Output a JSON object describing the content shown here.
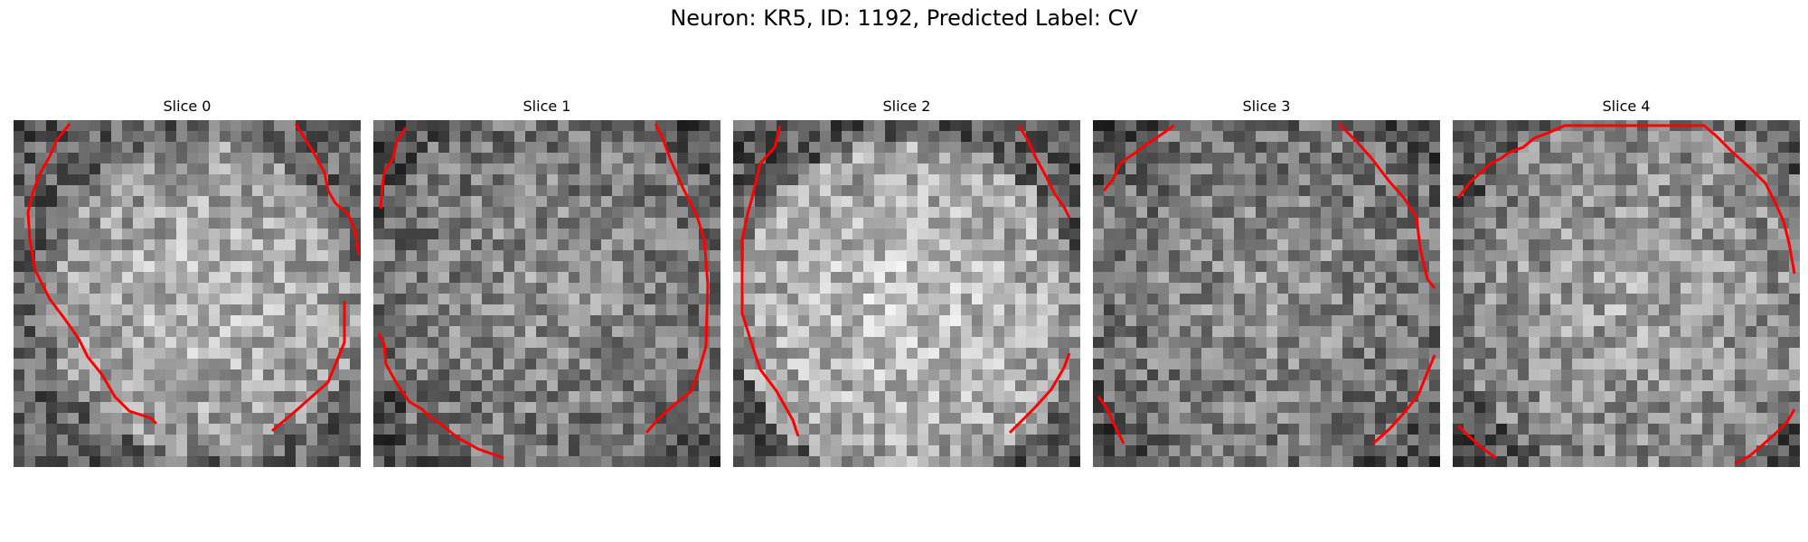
{
  "figure": {
    "title": "Neuron: KR5, ID: 1192, Predicted Label: CV"
  },
  "panels": [
    {
      "title": "Slice 0"
    },
    {
      "title": "Slice 1"
    },
    {
      "title": "Slice 2"
    },
    {
      "title": "Slice 3"
    },
    {
      "title": "Slice 4"
    }
  ],
  "colors": {
    "background": "#ffffff",
    "contour": "#ff0000",
    "text": "#000000"
  }
}
